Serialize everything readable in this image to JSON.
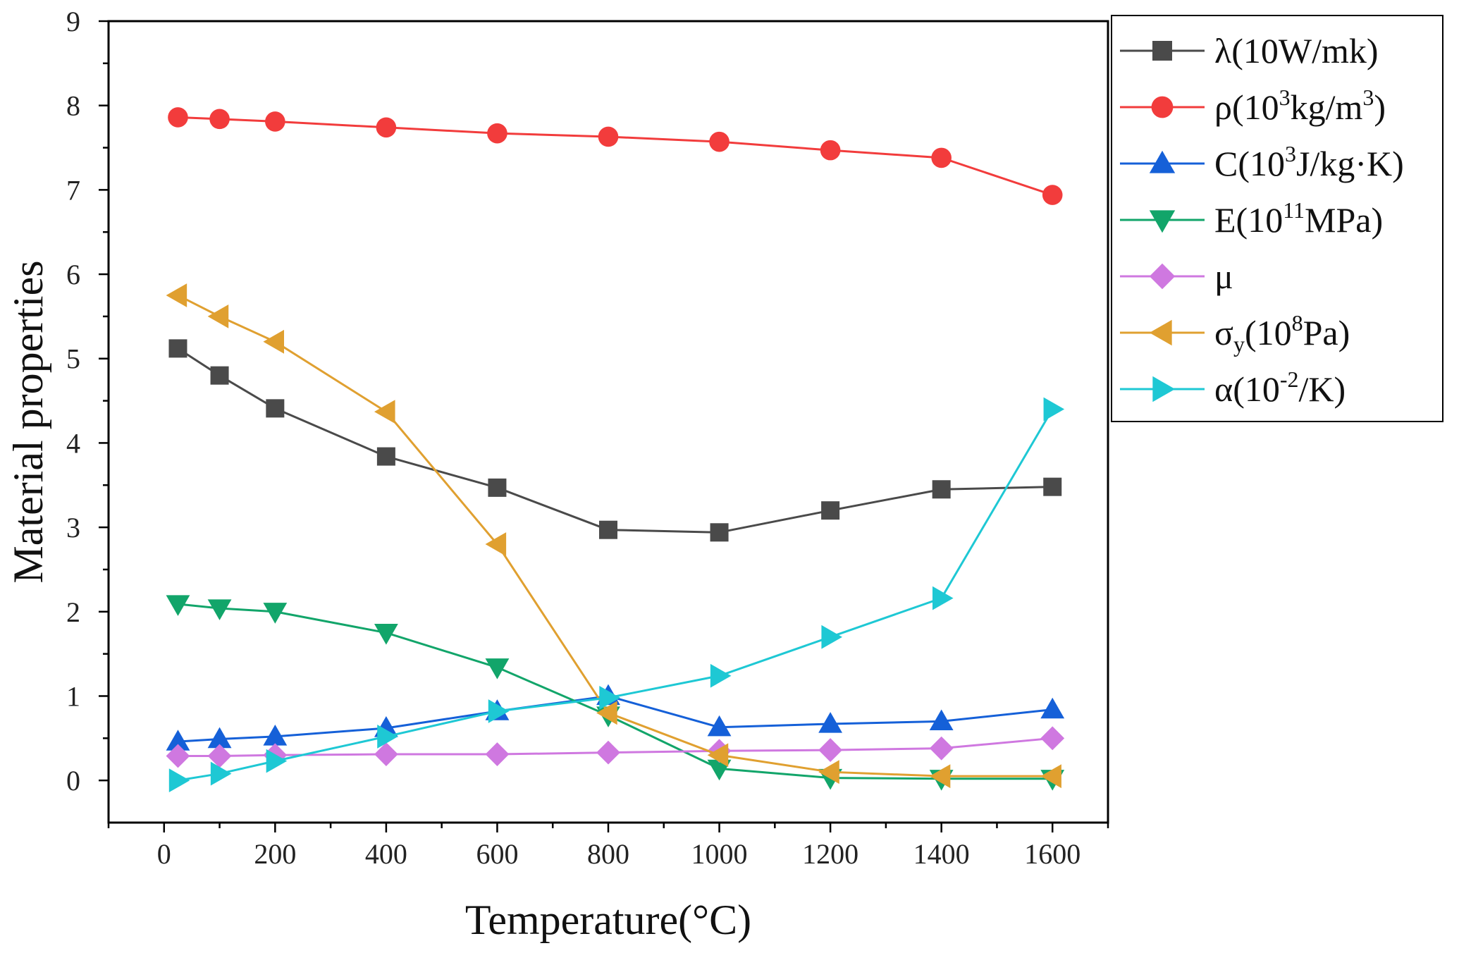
{
  "chart_data": {
    "type": "line",
    "xlabel": "Temperature(°C)",
    "ylabel": "Material properties",
    "xlim": [
      -100,
      1700
    ],
    "ylim": [
      -0.5,
      9
    ],
    "xticks": [
      0,
      200,
      400,
      600,
      800,
      1000,
      1200,
      1400,
      1600
    ],
    "yticks": [
      0,
      1,
      2,
      3,
      4,
      5,
      6,
      7,
      8,
      9
    ],
    "grid": false,
    "legend_position": "top-right",
    "x": [
      25,
      100,
      200,
      400,
      600,
      800,
      1000,
      1200,
      1400,
      1600
    ],
    "series": [
      {
        "key": "lambda",
        "name": "λ(10W/mk)",
        "color": "#4a4a4a",
        "marker": "square",
        "legend_parts": [
          {
            "t": "λ(10W/mk)",
            "s": "n"
          }
        ],
        "values": [
          5.12,
          4.8,
          4.41,
          3.84,
          3.47,
          2.97,
          2.94,
          3.2,
          3.45,
          3.48
        ]
      },
      {
        "key": "rho",
        "name": "ρ(10³kg/m³)",
        "color": "#f23c3c",
        "marker": "circle",
        "legend_parts": [
          {
            "t": "ρ(10",
            "s": "n"
          },
          {
            "t": "3",
            "s": "sup"
          },
          {
            "t": "kg/m",
            "s": "n"
          },
          {
            "t": "3",
            "s": "sup"
          },
          {
            "t": ")",
            "s": "n"
          }
        ],
        "values": [
          7.86,
          7.84,
          7.81,
          7.74,
          7.67,
          7.63,
          7.57,
          7.47,
          7.38,
          6.94
        ]
      },
      {
        "key": "c",
        "name": "C(10³J/kg·K)",
        "color": "#1560d8",
        "marker": "triangle-up",
        "legend_parts": [
          {
            "t": "C(10",
            "s": "n"
          },
          {
            "t": "3",
            "s": "sup"
          },
          {
            "t": "J/kg·K)",
            "s": "n"
          }
        ],
        "values": [
          0.46,
          0.49,
          0.52,
          0.62,
          0.82,
          1.0,
          0.63,
          0.67,
          0.7,
          0.84
        ]
      },
      {
        "key": "e",
        "name": "E(10¹¹MPa)",
        "color": "#12a56a",
        "marker": "triangle-down",
        "legend_parts": [
          {
            "t": "E(10",
            "s": "n"
          },
          {
            "t": "11",
            "s": "sup"
          },
          {
            "t": "MPa)",
            "s": "n"
          }
        ],
        "values": [
          2.09,
          2.04,
          2.0,
          1.75,
          1.34,
          0.77,
          0.14,
          0.03,
          0.02,
          0.02
        ]
      },
      {
        "key": "mu",
        "name": "μ",
        "color": "#cf78e0",
        "marker": "diamond",
        "legend_parts": [
          {
            "t": "μ",
            "s": "n"
          }
        ],
        "values": [
          0.29,
          0.29,
          0.3,
          0.31,
          0.31,
          0.33,
          0.35,
          0.36,
          0.38,
          0.5
        ]
      },
      {
        "key": "sigma",
        "name": "σy(10⁸Pa)",
        "color": "#e0a030",
        "marker": "triangle-left",
        "legend_parts": [
          {
            "t": "σ",
            "s": "n"
          },
          {
            "t": "y",
            "s": "sub"
          },
          {
            "t": "(10",
            "s": "n"
          },
          {
            "t": "8",
            "s": "sup"
          },
          {
            "t": "Pa)",
            "s": "n"
          }
        ],
        "values": [
          5.75,
          5.5,
          5.2,
          4.37,
          2.8,
          0.8,
          0.3,
          0.1,
          0.05,
          0.05
        ]
      },
      {
        "key": "alpha",
        "name": "α(10⁻²/K)",
        "color": "#1ec8d4",
        "marker": "triangle-right",
        "legend_parts": [
          {
            "t": "α(10",
            "s": "n"
          },
          {
            "t": "-2",
            "s": "sup"
          },
          {
            "t": "/K)",
            "s": "n"
          }
        ],
        "values": [
          0.0,
          0.08,
          0.23,
          0.52,
          0.82,
          0.98,
          1.24,
          1.7,
          2.16,
          4.4
        ]
      }
    ]
  }
}
